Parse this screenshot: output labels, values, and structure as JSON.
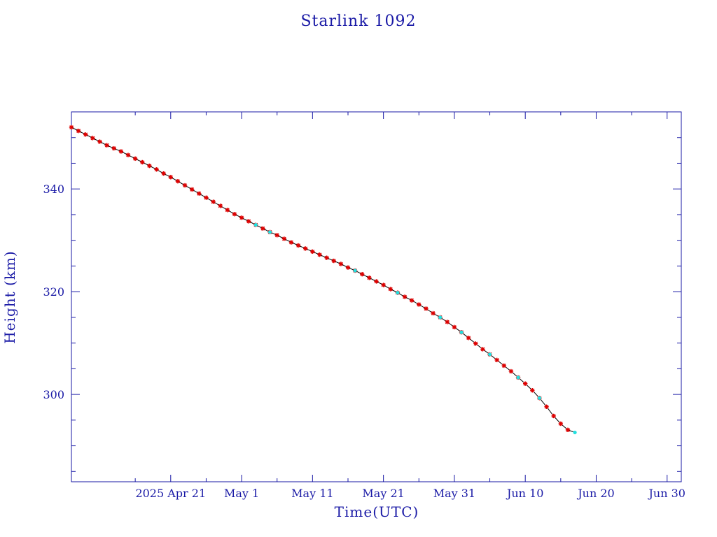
{
  "chart_data": {
    "type": "scatter",
    "title": "Starlink 1092",
    "xlabel": "Time(UTC)",
    "ylabel": "Height (km)",
    "x_range": [
      "2025-04-07",
      "2025-07-02"
    ],
    "ylim": [
      283,
      355
    ],
    "x_tick_labels": [
      {
        "date": "2025-04-21",
        "label": "2025 Apr 21"
      },
      {
        "date": "2025-05-01",
        "label": "May  1"
      },
      {
        "date": "2025-05-11",
        "label": "May 11"
      },
      {
        "date": "2025-05-21",
        "label": "May 21"
      },
      {
        "date": "2025-05-31",
        "label": "May 31"
      },
      {
        "date": "2025-06-10",
        "label": "Jun 10"
      },
      {
        "date": "2025-06-20",
        "label": "Jun 20"
      },
      {
        "date": "2025-06-30",
        "label": "Jun 30"
      }
    ],
    "y_ticks": [
      300,
      320,
      340
    ],
    "grid": false,
    "colors": {
      "axis": "#1a1aa6",
      "line": "#000000",
      "primary_marker": "#dd0000",
      "secondary_marker": "#22e0e0"
    },
    "series": [
      {
        "marker": "asterisk",
        "color": "#dd0000",
        "points": [
          [
            "2025-04-07",
            352.0
          ],
          [
            "2025-04-08",
            351.3
          ],
          [
            "2025-04-09",
            350.6
          ],
          [
            "2025-04-10",
            349.9
          ],
          [
            "2025-04-11",
            349.2
          ],
          [
            "2025-04-12",
            348.5
          ],
          [
            "2025-04-13",
            347.9
          ],
          [
            "2025-04-14",
            347.3
          ],
          [
            "2025-04-15",
            346.6
          ],
          [
            "2025-04-16",
            345.9
          ],
          [
            "2025-04-17",
            345.2
          ],
          [
            "2025-04-18",
            344.5
          ],
          [
            "2025-04-19",
            343.8
          ],
          [
            "2025-04-20",
            343.0
          ],
          [
            "2025-04-21",
            342.3
          ],
          [
            "2025-04-22",
            341.5
          ],
          [
            "2025-04-23",
            340.7
          ],
          [
            "2025-04-24",
            339.9
          ],
          [
            "2025-04-25",
            339.1
          ],
          [
            "2025-04-26",
            338.3
          ],
          [
            "2025-04-27",
            337.5
          ],
          [
            "2025-04-28",
            336.7
          ],
          [
            "2025-04-29",
            335.9
          ],
          [
            "2025-04-30",
            335.1
          ],
          [
            "2025-05-01",
            334.4
          ],
          [
            "2025-05-02",
            333.7
          ],
          [
            "2025-05-03",
            333.0
          ],
          [
            "2025-05-04",
            332.3
          ],
          [
            "2025-05-05",
            331.6
          ],
          [
            "2025-05-06",
            331.0
          ],
          [
            "2025-05-07",
            330.3
          ],
          [
            "2025-05-08",
            329.6
          ],
          [
            "2025-05-09",
            329.0
          ],
          [
            "2025-05-10",
            328.4
          ],
          [
            "2025-05-11",
            327.8
          ],
          [
            "2025-05-12",
            327.2
          ],
          [
            "2025-05-13",
            326.6
          ],
          [
            "2025-05-14",
            326.0
          ],
          [
            "2025-05-15",
            325.4
          ],
          [
            "2025-05-16",
            324.7
          ],
          [
            "2025-05-17",
            324.1
          ],
          [
            "2025-05-18",
            323.4
          ],
          [
            "2025-05-19",
            322.7
          ],
          [
            "2025-05-20",
            322.0
          ],
          [
            "2025-05-21",
            321.3
          ],
          [
            "2025-05-22",
            320.5
          ],
          [
            "2025-05-23",
            319.8
          ],
          [
            "2025-05-24",
            319.0
          ],
          [
            "2025-05-25",
            318.3
          ],
          [
            "2025-05-26",
            317.5
          ],
          [
            "2025-05-27",
            316.7
          ],
          [
            "2025-05-28",
            315.8
          ],
          [
            "2025-05-29",
            315.0
          ],
          [
            "2025-05-30",
            314.1
          ],
          [
            "2025-05-31",
            313.1
          ],
          [
            "2025-06-01",
            312.1
          ],
          [
            "2025-06-02",
            311.0
          ],
          [
            "2025-06-03",
            309.9
          ],
          [
            "2025-06-04",
            308.8
          ],
          [
            "2025-06-05",
            307.8
          ],
          [
            "2025-06-06",
            306.7
          ],
          [
            "2025-06-07",
            305.6
          ],
          [
            "2025-06-08",
            304.5
          ],
          [
            "2025-06-09",
            303.3
          ],
          [
            "2025-06-10",
            302.1
          ],
          [
            "2025-06-11",
            300.8
          ],
          [
            "2025-06-12",
            299.3
          ],
          [
            "2025-06-13",
            297.6
          ],
          [
            "2025-06-14",
            295.8
          ],
          [
            "2025-06-15",
            294.3
          ],
          [
            "2025-06-16",
            293.1
          ]
        ]
      },
      {
        "marker": "dot",
        "color": "#22e0e0",
        "points": [
          [
            "2025-05-03",
            333.0
          ],
          [
            "2025-05-05",
            331.6
          ],
          [
            "2025-05-17",
            324.1
          ],
          [
            "2025-05-23",
            319.8
          ],
          [
            "2025-05-29",
            315.0
          ],
          [
            "2025-06-01",
            312.1
          ],
          [
            "2025-06-05",
            307.8
          ],
          [
            "2025-06-09",
            303.3
          ],
          [
            "2025-06-12",
            299.3
          ],
          [
            "2025-06-17",
            292.6
          ]
        ]
      }
    ]
  }
}
